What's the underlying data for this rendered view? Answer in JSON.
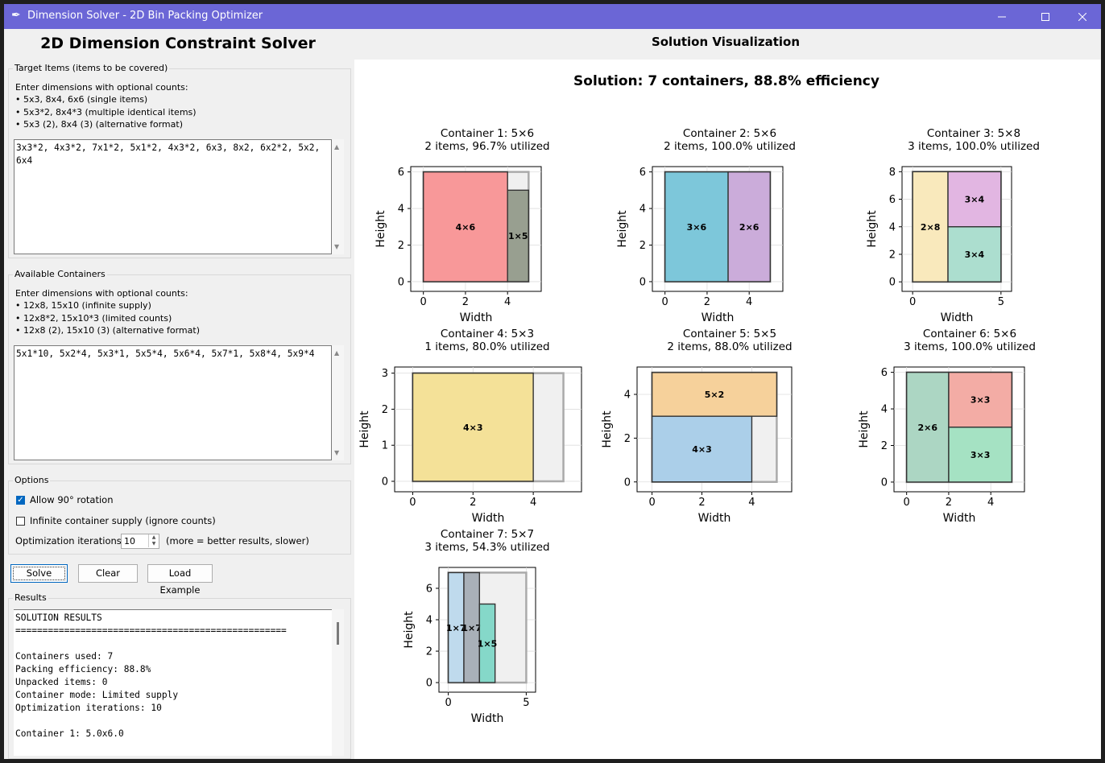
{
  "window": {
    "title": "Dimension Solver - 2D Bin Packing Optimizer",
    "icon": "feather-icon"
  },
  "left": {
    "title": "2D Dimension Constraint Solver",
    "targets": {
      "label": "Target Items (items to be covered)",
      "hint": "Enter dimensions with optional counts:\n• 5x3, 8x4, 6x6 (single items)\n• 5x3*2, 8x4*3 (multiple identical items)\n• 5x3 (2), 8x4 (3) (alternative format)",
      "value": "3x3*2, 4x3*2, 7x1*2, 5x1*2, 4x3*2, 6x3, 8x2, 6x2*2, 5x2, 6x4"
    },
    "containers": {
      "label": "Available Containers",
      "hint": "Enter dimensions with optional counts:\n• 12x8, 15x10 (infinite supply)\n• 12x8*2, 15x10*3 (limited counts)\n• 12x8 (2), 15x10 (3) (alternative format)",
      "value": "5x1*10, 5x2*4, 5x3*1, 5x5*4, 5x6*4, 5x7*1, 5x8*4, 5x9*4"
    },
    "options": {
      "label": "Options",
      "rotation_label": "Allow 90° rotation",
      "rotation_checked": true,
      "infinite_label": "Infinite container supply (ignore counts)",
      "infinite_checked": false,
      "iterations_label": "Optimization iterations:",
      "iterations_value": "10",
      "iterations_note": "(more = better results, slower)"
    },
    "buttons": {
      "solve": "Solve",
      "clear": "Clear",
      "load": "Load Example"
    },
    "results": {
      "label": "Results",
      "text": "SOLUTION RESULTS\n==================================================\n\nContainers used: 7\nPacking efficiency: 88.8%\nUnpacked items: 0\nContainer mode: Limited supply\nOptimization iterations: 10\n\nContainer 1: 5.0x6.0"
    }
  },
  "right": {
    "title": "Solution Visualization"
  },
  "chart_data": {
    "type": "bin-packing",
    "title": "Solution: 7 containers, 88.8% efficiency",
    "xlabel": "Width",
    "ylabel": "Height",
    "containers": [
      {
        "title": "Container 1: 5×6",
        "subtitle": "2 items, 96.7% utilized",
        "w": 5,
        "h": 6,
        "xticks": [
          0,
          2,
          4
        ],
        "yticks": [
          0,
          2,
          4,
          6
        ],
        "items": [
          {
            "x": 0,
            "y": 0,
            "w": 4,
            "h": 6,
            "label": "4×6",
            "color": "#f89294"
          },
          {
            "x": 4,
            "y": 0,
            "w": 1,
            "h": 5,
            "label": "1×5",
            "color": "#929a8a"
          }
        ]
      },
      {
        "title": "Container 2: 5×6",
        "subtitle": "2 items, 100.0% utilized",
        "w": 5,
        "h": 6,
        "xticks": [
          0,
          2,
          4
        ],
        "yticks": [
          0,
          2,
          4,
          6
        ],
        "items": [
          {
            "x": 0,
            "y": 0,
            "w": 3,
            "h": 6,
            "label": "3×6",
            "color": "#76c4d8"
          },
          {
            "x": 3,
            "y": 0,
            "w": 2,
            "h": 6,
            "label": "2×6",
            "color": "#c8a8d8"
          }
        ]
      },
      {
        "title": "Container 3: 5×8",
        "subtitle": "3 items, 100.0% utilized",
        "w": 5,
        "h": 8,
        "xticks": [
          0,
          5
        ],
        "yticks": [
          0,
          2,
          4,
          6,
          8
        ],
        "items": [
          {
            "x": 0,
            "y": 0,
            "w": 2,
            "h": 8,
            "label": "2×8",
            "color": "#f9e8b8"
          },
          {
            "x": 2,
            "y": 4,
            "w": 3,
            "h": 4,
            "label": "3×4",
            "color": "#e0b2e0"
          },
          {
            "x": 2,
            "y": 0,
            "w": 3,
            "h": 4,
            "label": "3×4",
            "color": "#a8dccc"
          }
        ]
      },
      {
        "title": "Container 4: 5×3",
        "subtitle": "1 items, 80.0% utilized",
        "w": 5,
        "h": 3,
        "xticks": [
          0,
          2,
          4
        ],
        "yticks": [
          0,
          1,
          2,
          3
        ],
        "items": [
          {
            "x": 0,
            "y": 0,
            "w": 4,
            "h": 3,
            "label": "4×3",
            "color": "#f3df92"
          }
        ]
      },
      {
        "title": "Container 5: 5×5",
        "subtitle": "2 items, 88.0% utilized",
        "w": 5,
        "h": 5,
        "xticks": [
          0,
          2,
          4
        ],
        "yticks": [
          0,
          2,
          4
        ],
        "items": [
          {
            "x": 0,
            "y": 3,
            "w": 5,
            "h": 2,
            "label": "5×2",
            "color": "#f6cf96"
          },
          {
            "x": 0,
            "y": 0,
            "w": 4,
            "h": 3,
            "label": "4×3",
            "color": "#a6cce8"
          }
        ]
      },
      {
        "title": "Container 6: 5×6",
        "subtitle": "3 items, 100.0% utilized",
        "w": 5,
        "h": 6,
        "xticks": [
          0,
          2,
          4
        ],
        "yticks": [
          0,
          2,
          4,
          6
        ],
        "items": [
          {
            "x": 0,
            "y": 0,
            "w": 2,
            "h": 6,
            "label": "2×6",
            "color": "#a8d4c0"
          },
          {
            "x": 2,
            "y": 3,
            "w": 3,
            "h": 3,
            "label": "3×3",
            "color": "#f2a8a0"
          },
          {
            "x": 2,
            "y": 0,
            "w": 3,
            "h": 3,
            "label": "3×3",
            "color": "#a0e0c0"
          }
        ]
      },
      {
        "title": "Container 7: 5×7",
        "subtitle": "3 items, 54.3% utilized",
        "w": 5,
        "h": 7,
        "xticks": [
          0,
          5
        ],
        "yticks": [
          0,
          2,
          4,
          6
        ],
        "items": [
          {
            "x": 0,
            "y": 0,
            "w": 1,
            "h": 7,
            "label": "1×7",
            "color": "#bcd8ec"
          },
          {
            "x": 1,
            "y": 0,
            "w": 1,
            "h": 7,
            "label": "1×7",
            "color": "#a4acb4"
          },
          {
            "x": 2,
            "y": 0,
            "w": 1,
            "h": 5,
            "label": "1×5",
            "color": "#7ed6c6"
          }
        ]
      }
    ]
  }
}
